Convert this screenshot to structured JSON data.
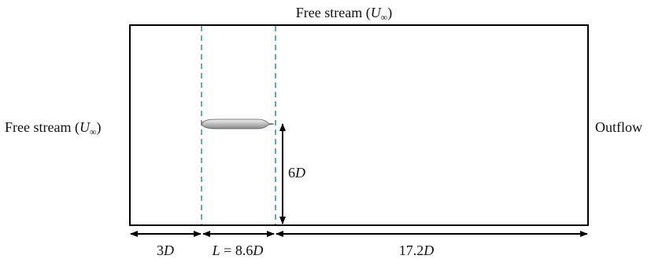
{
  "labels": {
    "top_inflow": {
      "prefix": "Free stream (",
      "var": "U",
      "sub": "∞",
      "suffix": ")"
    },
    "left_inflow": {
      "prefix": "Free stream (",
      "var": "U",
      "sub": "∞",
      "suffix": ")"
    },
    "outflow": "Outflow",
    "height": {
      "num": "6",
      "var": "D"
    },
    "upstream": {
      "num": "3",
      "var": "D"
    },
    "body_length": {
      "var_l": "L",
      "eq": " = 8.6",
      "var": "D"
    },
    "downstream": {
      "num": "17.2",
      "var": "D"
    }
  },
  "colors": {
    "domain_border": "#000000",
    "dashed_lines": "#3a8fd8",
    "body_fill": "#c8c8c8",
    "arrows": "#000000"
  },
  "icons": {
    "body": "slender-body-shape"
  }
}
